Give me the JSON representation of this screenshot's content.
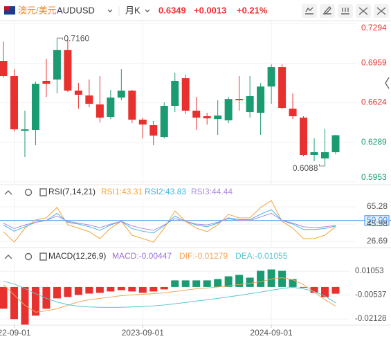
{
  "header": {
    "pair_cn": "澳元/美元",
    "symbol": "AUDUSD",
    "period": "月K",
    "price": "0.6349",
    "change": "+0.0013",
    "change_pct": "+0.21%"
  },
  "chart_data": [
    {
      "type": "candlestick",
      "up_color": "#1a9b72",
      "down_color": "#e8312f",
      "open": [
        0.6979,
        0.685,
        0.6387,
        0.6393,
        0.6809,
        0.6821,
        0.7072,
        0.6727,
        0.6686,
        0.661,
        0.6504,
        0.6668,
        0.6727,
        0.6481,
        0.6434,
        0.6334,
        0.6598,
        0.6832,
        0.6557,
        0.651,
        0.6486,
        0.6475,
        0.6656,
        0.6545,
        0.6539,
        0.6762,
        0.6926,
        0.6574,
        0.6498,
        0.6182,
        0.6152,
        0.6205
      ],
      "high": [
        0.7143,
        0.6908,
        0.6557,
        0.6803,
        0.6996,
        0.7172,
        0.716,
        0.6791,
        0.6821,
        0.685,
        0.6733,
        0.6908,
        0.6733,
        0.6498,
        0.6469,
        0.6627,
        0.6879,
        0.6862,
        0.6674,
        0.6539,
        0.6645,
        0.6674,
        0.685,
        0.685,
        0.6791,
        0.6949,
        0.6949,
        0.6703,
        0.651,
        0.6322,
        0.6404,
        0.6352
      ],
      "low": [
        0.6838,
        0.6381,
        0.6164,
        0.6264,
        0.6674,
        0.6703,
        0.6715,
        0.6574,
        0.6586,
        0.6457,
        0.6486,
        0.6645,
        0.6451,
        0.6322,
        0.6264,
        0.6322,
        0.6545,
        0.6528,
        0.6393,
        0.644,
        0.6352,
        0.6451,
        0.6557,
        0.6498,
        0.6352,
        0.6615,
        0.6569,
        0.6486,
        0.617,
        0.6129,
        0.6088,
        0.6188
      ],
      "close": [
        0.685,
        0.6399,
        0.6399,
        0.6785,
        0.6785,
        0.7072,
        0.6727,
        0.6692,
        0.6615,
        0.6498,
        0.6668,
        0.6727,
        0.6481,
        0.644,
        0.6346,
        0.6598,
        0.6809,
        0.6557,
        0.6498,
        0.6492,
        0.6516,
        0.6656,
        0.6645,
        0.668,
        0.6762,
        0.6926,
        0.658,
        0.651,
        0.6182,
        0.6205,
        0.6205,
        0.6349
      ],
      "high_label": "0.7160",
      "low_label": "0.6088",
      "ylim": [
        0.5924,
        0.7319
      ],
      "yticks": [
        0.7294,
        0.6959,
        0.6624,
        0.6289,
        0.5953
      ],
      "tick_up_color": "#e8312f",
      "tick_down_color": "#1a9b72"
    },
    {
      "type": "line",
      "title": "RSI(7,14,21)",
      "ylim": [
        20.5,
        74.5
      ],
      "yticks": [
        65.28,
        {
          "value": 50,
          "label": "50.00"
        },
        45.98,
        26.69
      ],
      "highlight_color": "#3d8ee8",
      "series": [
        {
          "name": "RSI1:43.31",
          "color": "#f5a33a",
          "values": [
            37.5,
            25.9,
            41.4,
            50.6,
            52.9,
            64.5,
            45.2,
            41.4,
            37.5,
            29.8,
            41.4,
            49.1,
            33.6,
            29.8,
            25.9,
            41.4,
            60.6,
            49.1,
            41.4,
            37.5,
            45.2,
            56.8,
            52.9,
            52.9,
            64.5,
            72.2,
            49.1,
            41.4,
            29.8,
            29.8,
            33.6,
            43.31
          ]
        },
        {
          "name": "RSI2:43.83",
          "color": "#42b4e6",
          "values": [
            45,
            38,
            43,
            48,
            50,
            58,
            48,
            46,
            43,
            39,
            45,
            49,
            41,
            38,
            36,
            44,
            55,
            49,
            45,
            43,
            47,
            53,
            51,
            51,
            57,
            62,
            50,
            46,
            40,
            40,
            41,
            43.83
          ]
        },
        {
          "name": "RSI3:44.44",
          "color": "#a98be0",
          "values": [
            47,
            41,
            45,
            48,
            50,
            55,
            49,
            47,
            45,
            42,
            46,
            49,
            44,
            41,
            39,
            45,
            52,
            49,
            46,
            45,
            48,
            52,
            50,
            50,
            54,
            58,
            50,
            47,
            43,
            42,
            43,
            44.44
          ]
        }
      ]
    },
    {
      "type": "macd",
      "title": "MACD(12,26,9)",
      "ylim": [
        -0.0254,
        0.0184
      ],
      "yticks": [
        0.01053,
        -0.00537,
        -0.02128
      ],
      "categories": [
        null,
        "22-09-01",
        null,
        null,
        null,
        null,
        null,
        null,
        null,
        null,
        null,
        null,
        null,
        "2023-09-01",
        null,
        null,
        null,
        null,
        null,
        null,
        null,
        null,
        null,
        null,
        null,
        "2024-09-01",
        null,
        null,
        null,
        null,
        null,
        null
      ],
      "series": [
        {
          "name": "MACD:-0.00447",
          "color": "#9b6fd4",
          "bar_colors": [
            "#1a9b72",
            "#e8312f"
          ],
          "values": [
            -0.0145,
            -0.0214,
            -0.0251,
            -0.0191,
            -0.0145,
            -0.0076,
            -0.0067,
            -0.0053,
            -0.0044,
            -0.0039,
            -0.003,
            -0.0021,
            -0.003,
            -0.0039,
            -0.003,
            -0.0016,
            0.0044,
            0.0044,
            0.0044,
            0.0044,
            0.0053,
            0.0071,
            0.0081,
            0.0062,
            0.0108,
            0.0117,
            0.0108,
            0.0053,
            -0.0002,
            -0.0039,
            -0.0067,
            -0.00447
          ]
        },
        {
          "name": "DIF:-0.01279",
          "color": "#f5a55a",
          "values": [
            0.0016,
            -0.0053,
            -0.0122,
            -0.0168,
            -0.0159,
            -0.0145,
            -0.0122,
            -0.0099,
            -0.0085,
            -0.0076,
            -0.0067,
            -0.0058,
            -0.0053,
            -0.0049,
            -0.0044,
            -0.0039,
            -0.003,
            -0.0021,
            -0.0012,
            -0.0007,
            0.0,
            0.0007,
            0.0016,
            0.0025,
            0.0035,
            0.0053,
            0.0062,
            0.0048,
            0.0016,
            -0.0035,
            -0.0085,
            -0.01279
          ]
        },
        {
          "name": "DEA:-0.01055",
          "color": "#56c5d0",
          "values": [
            0.0039,
            0.002,
            -0.001,
            -0.0045,
            -0.0075,
            -0.01,
            -0.0118,
            -0.0128,
            -0.0133,
            -0.0135,
            -0.0136,
            -0.0135,
            -0.0133,
            -0.013,
            -0.0126,
            -0.012,
            -0.0112,
            -0.0103,
            -0.0094,
            -0.0085,
            -0.0076,
            -0.0066,
            -0.0056,
            -0.0045,
            -0.0034,
            -0.0022,
            -0.001,
            -0.0002,
            -0.0012,
            -0.003,
            -0.006,
            -0.01055
          ]
        }
      ]
    }
  ]
}
